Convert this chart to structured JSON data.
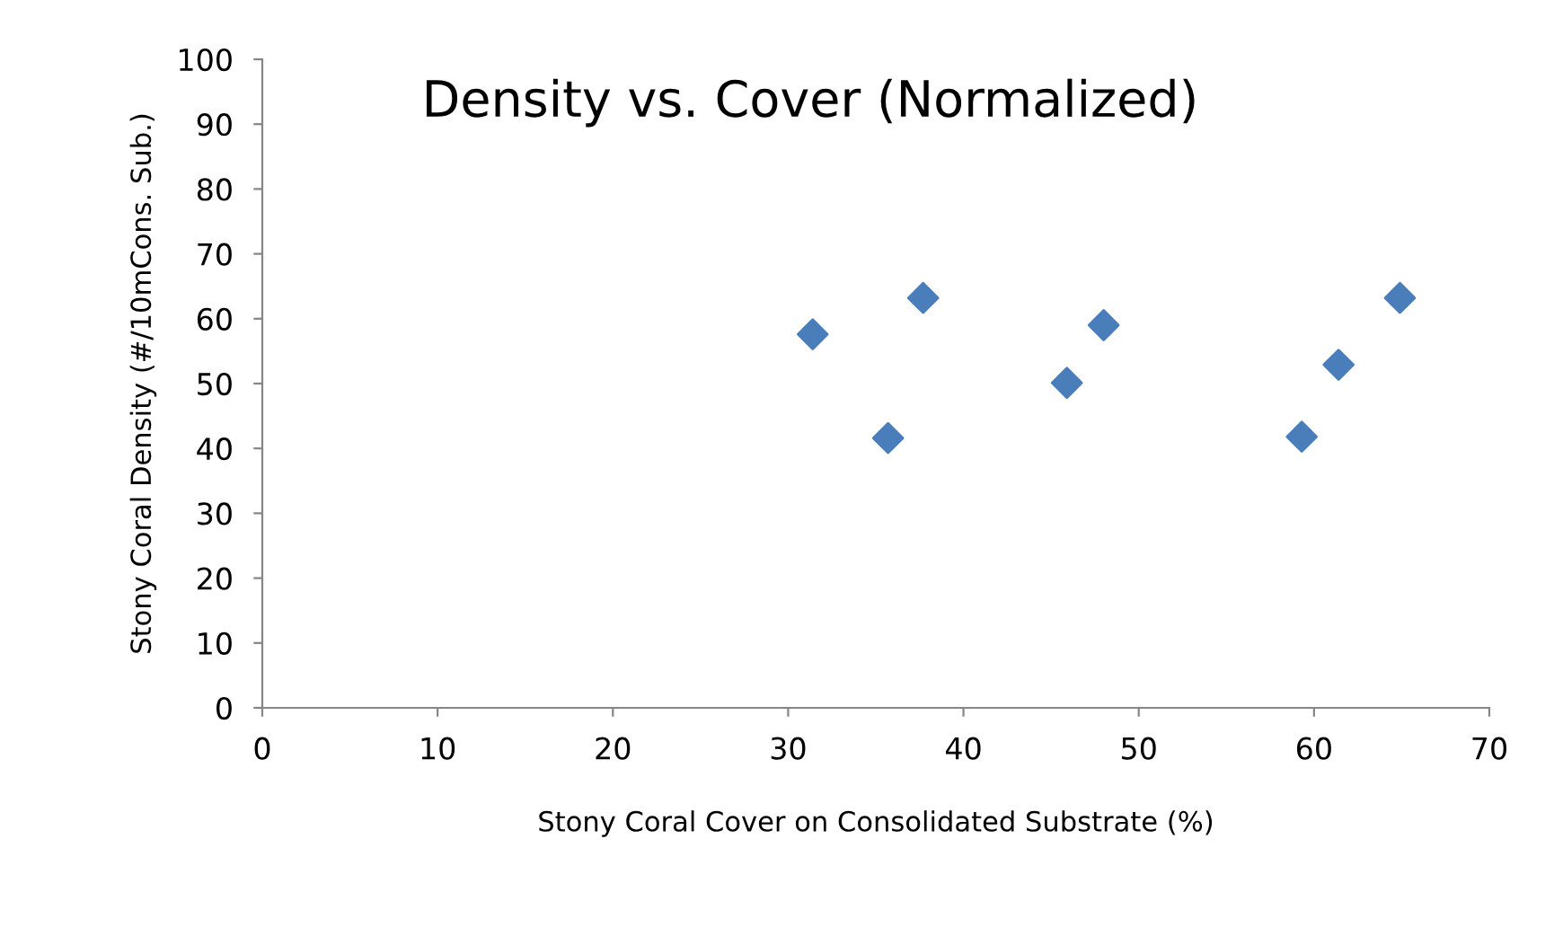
{
  "chart_data": {
    "type": "scatter",
    "title": "Density vs. Cover (Normalized)",
    "xlabel": "Stony Coral Cover on Consolidated Substrate (%)",
    "ylabel": "Stony Coral Density (#/10mCons. Sub.)",
    "x": [
      31.4,
      35.7,
      37.7,
      45.9,
      48.0,
      59.3,
      61.4,
      64.9
    ],
    "series": [
      {
        "color": "#4a7ebb",
        "values": [
          57.6,
          41.6,
          63.2,
          50.1,
          59.0,
          41.8,
          52.9,
          63.2
        ]
      }
    ],
    "xlim": [
      0,
      70
    ],
    "xticks": [
      0,
      10,
      20,
      30,
      40,
      50,
      60,
      70
    ],
    "ylim": [
      0,
      100
    ],
    "yticks": [
      0,
      10,
      20,
      30,
      40,
      50,
      60,
      70,
      80,
      90,
      100
    ],
    "marker": "diamond",
    "grid": false,
    "legend": false
  }
}
